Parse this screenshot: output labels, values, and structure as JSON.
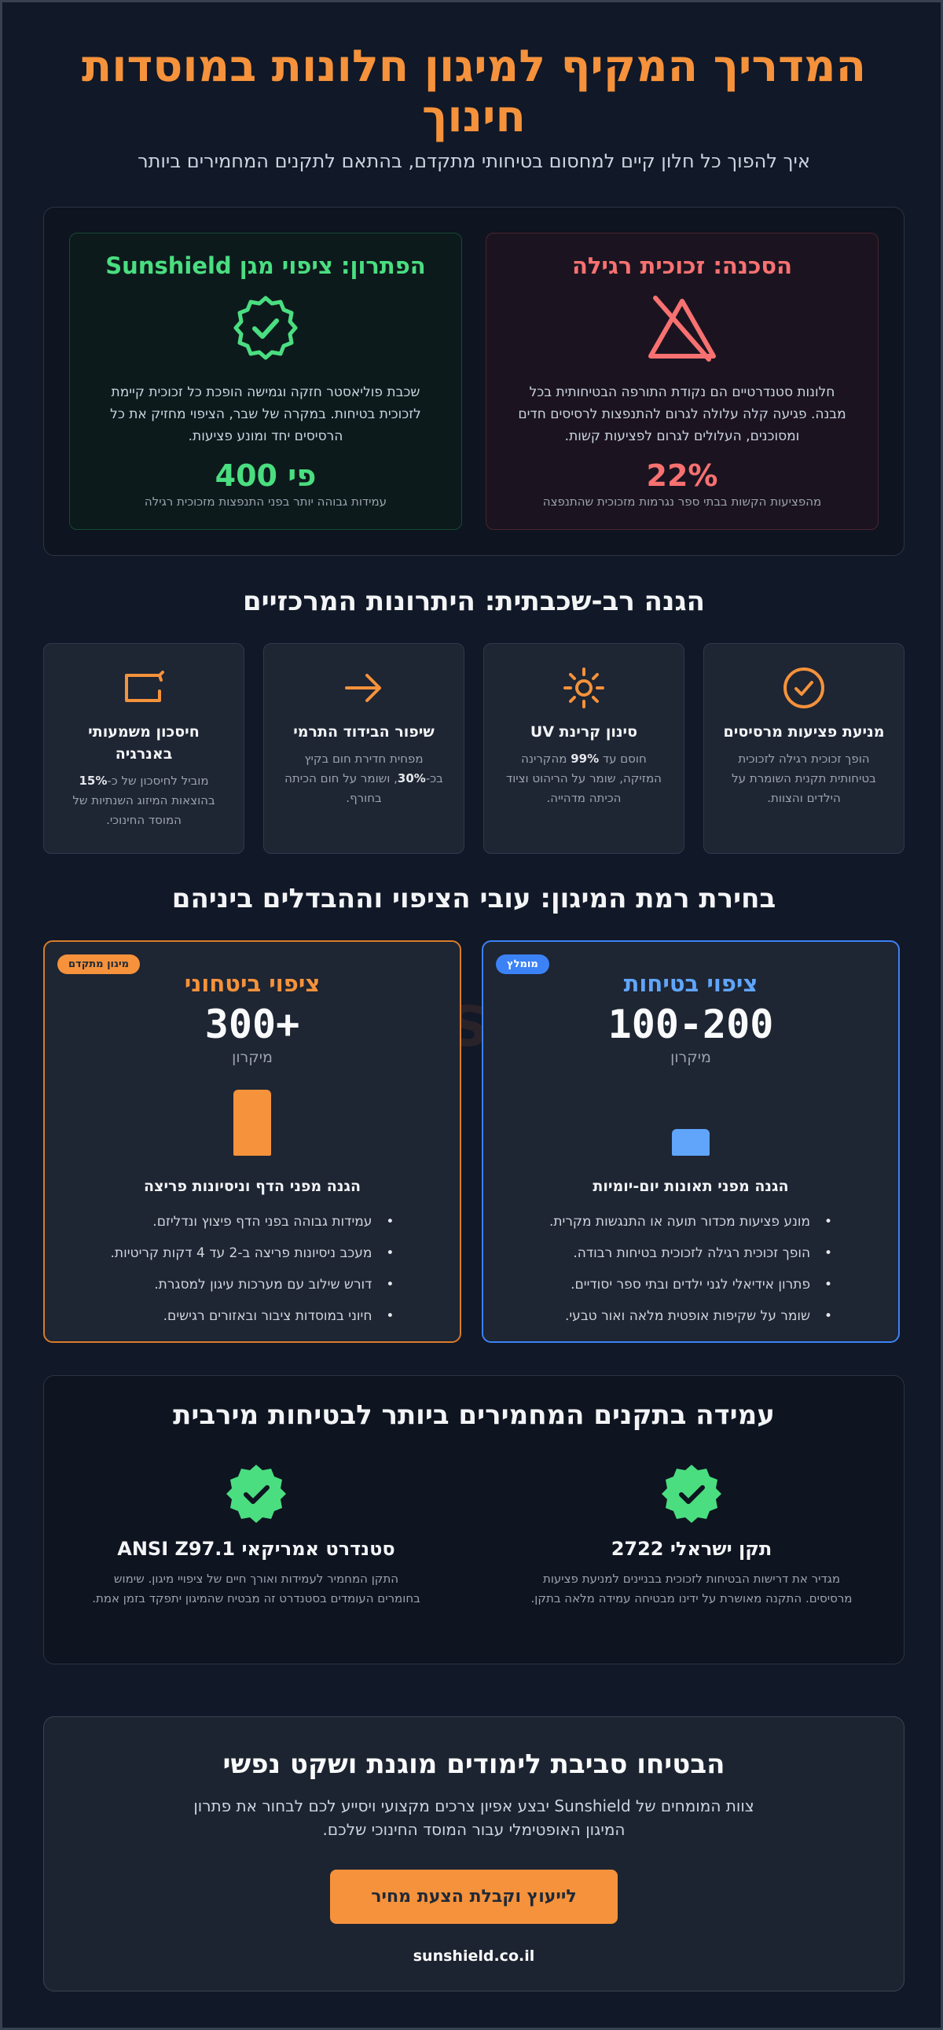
{
  "header": {
    "title": "המדריך המקיף למיגון חלונות במוסדות חינוך",
    "subtitle": "איך להפוך כל חלון קיים למחסום בטיחותי מתקדם, בהתאם לתקנים המחמירים ביותר"
  },
  "compare": {
    "danger": {
      "title": "הסכנה: זכוכית רגילה",
      "icon": "warning-slash-icon",
      "text": "חלונות סטנדרטיים הם נקודת התורפה הבטיחותית בכל מבנה. פגיעה קלה עלולה לגרום להתנפצות לרסיסים חדים ומסוכנים, העלולים לגרום לפציעות קשות.",
      "stat": "22%",
      "stat_note": "מהפציעות הקשות בבתי ספר נגרמות מזכוכית שהתנפצה"
    },
    "solution": {
      "title": "הפתרון: ציפוי מגן Sunshield",
      "icon": "check-badge-icon",
      "text": "שכבת פוליאסטר חזקה וגמישה הופכת כל זכוכית קיימת לזכוכית בטיחות. במקרה של שבר, הציפוי מחזיק את כל הרסיסים יחד ומונע פציעות.",
      "stat": "פי 400",
      "stat_note": "עמידות גבוהה יותר בפני התנפצות מזכוכית רגילה"
    }
  },
  "advantages": {
    "title": "הגנה רב-שכבתית: היתרונות המרכזיים",
    "items": [
      {
        "icon": "check-circle-icon",
        "title": "מניעת פציעות מרסיסים",
        "text": "הופך זכוכית רגילה לזכוכית בטיחותית תקנית השומרת על הילדים והצוות."
      },
      {
        "icon": "sun-icon",
        "title": "סינון קרינת UV",
        "text_pre": "חוסם עד ",
        "text_bold": "99%",
        "text_post": " מהקרינה המזיקה, שומר על הריהוט וציוד הכיתה מדהייה."
      },
      {
        "icon": "arrow-right-icon",
        "title": "שיפור הבידוד התרמי",
        "text_pre": "מפחית חדירת חום בקיץ בכ-",
        "text_bold": "30%",
        "text_post": ", ושומר על חום הכיתה בחורף."
      },
      {
        "icon": "energy-icon",
        "title": "חיסכון משמעותי באנרגיה",
        "text_pre": "מוביל לחיסכון של כ-",
        "text_bold": "15%",
        "text_post": " בהוצאות המיזוג השנתיות של המוסד החינוכי."
      }
    ]
  },
  "levels": {
    "title": "בחירת רמת המיגון: עובי הציפוי וההבדלים ביניהם",
    "watermark": "Se",
    "safety": {
      "badge": "מומלץ",
      "title": "ציפוי בטיחות",
      "thickness": "100-200",
      "unit": "מיקרון",
      "bar_fraction": 0.4,
      "subtitle": "הגנה מפני תאונות יום-יומיות",
      "bullets": [
        "מונע פציעות מכדור תועה או התנגשות מקרית.",
        "הופך זכוכית רגילה לזכוכית בטיחות רבודה.",
        "פתרון אידיאלי לגני ילדים ובתי ספר יסודיים.",
        "שומר על שקיפות אופטית מלאה ואור טבעי."
      ]
    },
    "security": {
      "badge": "מיגון מתקדם",
      "title": "ציפוי ביטחוני",
      "thickness": "300+",
      "unit": "מיקרון",
      "bar_fraction": 1.0,
      "subtitle": "הגנה מפני הדף וניסיונות פריצה",
      "bullets": [
        "עמידות גבוהה בפני הדף פיצוץ ונדליזם.",
        "מעכב ניסיונות פריצה ב-2 עד 4 דקות קריטיות.",
        "דורש שילוב עם מערכות עיגון למסגרת.",
        "חיוני במוסדות ציבור ובאזורים רגישים."
      ]
    }
  },
  "standards": {
    "title": "עמידה בתקנים המחמירים ביותר לבטיחות מירבית",
    "items": [
      {
        "icon": "check-seal-icon",
        "title": "תקן ישראלי 2722",
        "text": "מגדיר את דרישות הבטיחות לזכוכית בבניינים למניעת פציעות מרסיסים. התקנה מאושרת על ידינו מבטיחה עמידה מלאה בתקן."
      },
      {
        "icon": "check-seal-icon",
        "title": "סטנדרט אמריקאי ANSI Z97.1",
        "text": "התקן המחמיר לעמידות ואורך חיים של ציפויי מיגון. שימוש בחומרים העומדים בסטנדרט זה מבטיח שהמיגון יתפקד בזמן אמת."
      }
    ]
  },
  "cta": {
    "title": "הבטיחו סביבת לימודים מוגנת ושקט נפשי",
    "text": "צוות המומחים של Sunshield יבצע אפיון צרכים מקצועי ויסייע לכם לבחור את פתרון המיגון האופטימלי עבור המוסד החינוכי שלכם.",
    "button": "לייעוץ וקבלת הצעת מחיר",
    "url": "sunshield.co.il"
  },
  "colors": {
    "accent": "#f5923b",
    "danger": "#f87171",
    "success": "#4ade80",
    "info": "#60a5fa",
    "background": "#111827"
  }
}
